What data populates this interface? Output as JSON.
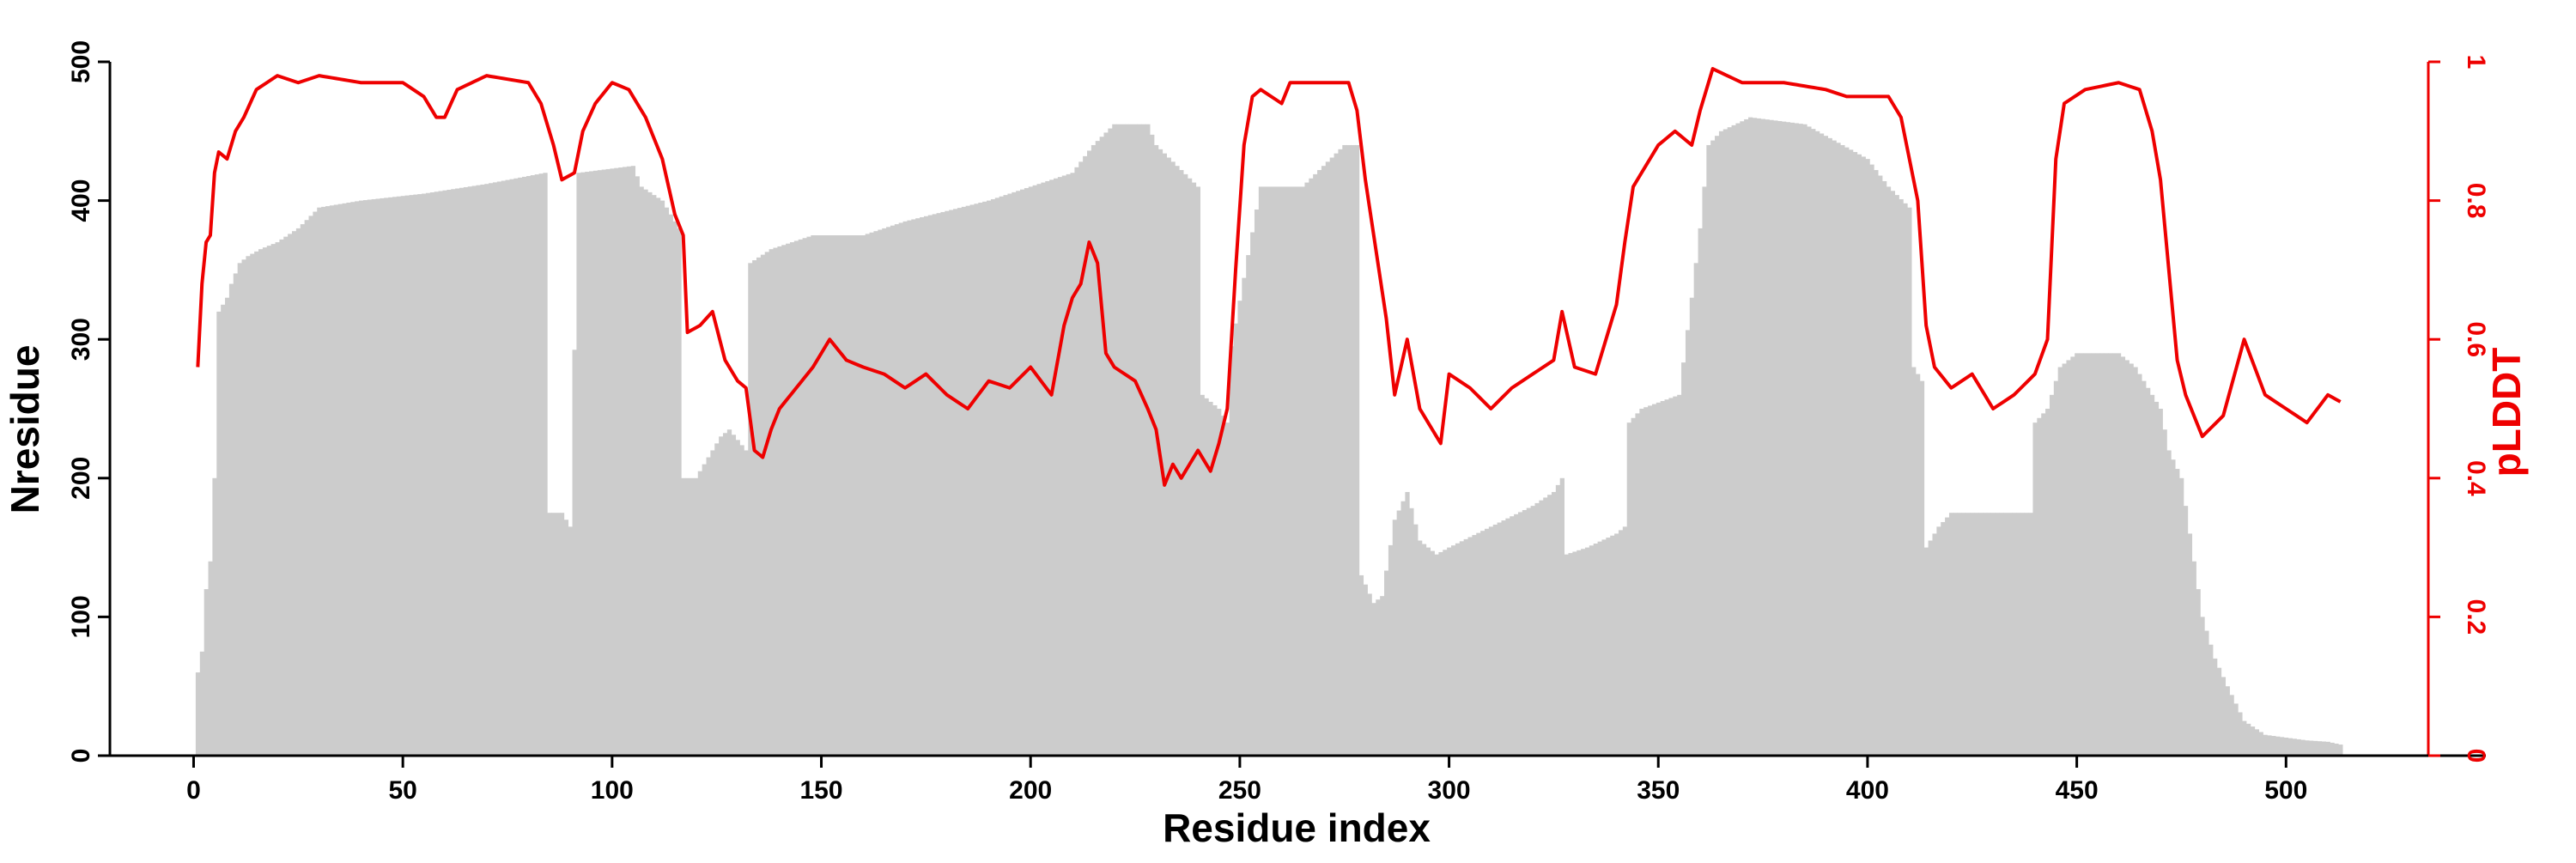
{
  "chart_data": {
    "type": "bar+line",
    "xlabel": "Residue index",
    "ylabel": "Nresidue",
    "y2label": "pLDDT",
    "xlim": [
      -20,
      534
    ],
    "ylim": [
      0,
      500
    ],
    "y2lim": [
      0,
      1
    ],
    "xticks": [
      0,
      50,
      100,
      150,
      200,
      250,
      300,
      350,
      400,
      450,
      500
    ],
    "yticks": [
      0,
      100,
      200,
      300,
      400,
      500
    ],
    "y2ticks": [
      0,
      0.2,
      0.4,
      0.6,
      0.8,
      1
    ],
    "y2ticklabels": [
      "0",
      "0.2",
      "0.4",
      "0.6",
      "0.8",
      "1"
    ],
    "colors": {
      "bars": "#cccccc",
      "plddt": "#ee0000",
      "axis": "#000000"
    },
    "series": [
      {
        "kind": "bar",
        "axis": "left",
        "x_start": 1,
        "x_end": 513,
        "keypoints": [
          [
            1,
            60
          ],
          [
            2,
            75
          ],
          [
            3,
            120
          ],
          [
            4,
            140
          ],
          [
            5,
            200
          ],
          [
            6,
            320
          ],
          [
            8,
            330
          ],
          [
            9,
            340
          ],
          [
            11,
            355
          ],
          [
            13,
            360
          ],
          [
            16,
            365
          ],
          [
            20,
            370
          ],
          [
            25,
            380
          ],
          [
            30,
            395
          ],
          [
            40,
            400
          ],
          [
            55,
            405
          ],
          [
            70,
            412
          ],
          [
            84,
            420
          ],
          [
            85,
            175
          ],
          [
            88,
            175
          ],
          [
            90,
            165
          ],
          [
            92,
            420
          ],
          [
            105,
            425
          ],
          [
            107,
            410
          ],
          [
            112,
            400
          ],
          [
            116,
            380
          ],
          [
            117,
            200
          ],
          [
            120,
            200
          ],
          [
            122,
            210
          ],
          [
            126,
            230
          ],
          [
            128,
            235
          ],
          [
            132,
            220
          ],
          [
            133,
            355
          ],
          [
            138,
            365
          ],
          [
            148,
            375
          ],
          [
            160,
            375
          ],
          [
            170,
            385
          ],
          [
            190,
            400
          ],
          [
            200,
            410
          ],
          [
            210,
            420
          ],
          [
            215,
            440
          ],
          [
            220,
            455
          ],
          [
            228,
            455
          ],
          [
            230,
            440
          ],
          [
            240,
            410
          ],
          [
            241,
            260
          ],
          [
            245,
            250
          ],
          [
            247,
            240
          ],
          [
            248,
            295
          ],
          [
            255,
            410
          ],
          [
            265,
            410
          ],
          [
            275,
            440
          ],
          [
            278,
            440
          ],
          [
            279,
            130
          ],
          [
            282,
            110
          ],
          [
            284,
            115
          ],
          [
            287,
            170
          ],
          [
            290,
            190
          ],
          [
            293,
            155
          ],
          [
            297,
            145
          ],
          [
            300,
            150
          ],
          [
            310,
            165
          ],
          [
            320,
            180
          ],
          [
            325,
            190
          ],
          [
            327,
            200
          ],
          [
            328,
            145
          ],
          [
            333,
            150
          ],
          [
            340,
            160
          ],
          [
            342,
            165
          ],
          [
            343,
            240
          ],
          [
            346,
            250
          ],
          [
            355,
            260
          ],
          [
            358,
            330
          ],
          [
            360,
            380
          ],
          [
            362,
            440
          ],
          [
            365,
            450
          ],
          [
            372,
            460
          ],
          [
            385,
            455
          ],
          [
            400,
            430
          ],
          [
            405,
            410
          ],
          [
            410,
            395
          ],
          [
            411,
            280
          ],
          [
            413,
            270
          ],
          [
            414,
            150
          ],
          [
            417,
            165
          ],
          [
            420,
            175
          ],
          [
            430,
            175
          ],
          [
            438,
            175
          ],
          [
            439,
            175
          ],
          [
            440,
            240
          ],
          [
            443,
            250
          ],
          [
            446,
            280
          ],
          [
            450,
            290
          ],
          [
            460,
            290
          ],
          [
            464,
            280
          ],
          [
            470,
            250
          ],
          [
            472,
            220
          ],
          [
            475,
            200
          ],
          [
            477,
            160
          ],
          [
            480,
            100
          ],
          [
            483,
            70
          ],
          [
            486,
            50
          ],
          [
            490,
            25
          ],
          [
            495,
            15
          ],
          [
            500,
            13
          ],
          [
            505,
            11
          ],
          [
            510,
            10
          ],
          [
            513,
            8
          ]
        ]
      },
      {
        "kind": "line",
        "name": "pLDDT",
        "axis": "right",
        "x_start": 1,
        "x_end": 513,
        "keypoints": [
          [
            1,
            0.56
          ],
          [
            2,
            0.68
          ],
          [
            3,
            0.74
          ],
          [
            4,
            0.75
          ],
          [
            5,
            0.84
          ],
          [
            6,
            0.87
          ],
          [
            8,
            0.86
          ],
          [
            10,
            0.9
          ],
          [
            12,
            0.92
          ],
          [
            15,
            0.96
          ],
          [
            20,
            0.98
          ],
          [
            25,
            0.97
          ],
          [
            30,
            0.98
          ],
          [
            40,
            0.97
          ],
          [
            50,
            0.97
          ],
          [
            55,
            0.95
          ],
          [
            58,
            0.92
          ],
          [
            60,
            0.92
          ],
          [
            63,
            0.96
          ],
          [
            70,
            0.98
          ],
          [
            80,
            0.97
          ],
          [
            83,
            0.94
          ],
          [
            86,
            0.88
          ],
          [
            88,
            0.83
          ],
          [
            91,
            0.84
          ],
          [
            93,
            0.9
          ],
          [
            96,
            0.94
          ],
          [
            100,
            0.97
          ],
          [
            104,
            0.96
          ],
          [
            108,
            0.92
          ],
          [
            112,
            0.86
          ],
          [
            115,
            0.78
          ],
          [
            117,
            0.75
          ],
          [
            118,
            0.61
          ],
          [
            121,
            0.62
          ],
          [
            124,
            0.64
          ],
          [
            127,
            0.57
          ],
          [
            130,
            0.54
          ],
          [
            132,
            0.53
          ],
          [
            134,
            0.44
          ],
          [
            136,
            0.43
          ],
          [
            138,
            0.47
          ],
          [
            140,
            0.5
          ],
          [
            144,
            0.53
          ],
          [
            148,
            0.56
          ],
          [
            150,
            0.58
          ],
          [
            152,
            0.6
          ],
          [
            156,
            0.57
          ],
          [
            160,
            0.56
          ],
          [
            165,
            0.55
          ],
          [
            170,
            0.53
          ],
          [
            175,
            0.55
          ],
          [
            180,
            0.52
          ],
          [
            185,
            0.5
          ],
          [
            190,
            0.54
          ],
          [
            195,
            0.53
          ],
          [
            200,
            0.56
          ],
          [
            205,
            0.52
          ],
          [
            208,
            0.62
          ],
          [
            210,
            0.66
          ],
          [
            212,
            0.68
          ],
          [
            214,
            0.74
          ],
          [
            216,
            0.71
          ],
          [
            218,
            0.58
          ],
          [
            220,
            0.56
          ],
          [
            225,
            0.54
          ],
          [
            228,
            0.5
          ],
          [
            230,
            0.47
          ],
          [
            232,
            0.39
          ],
          [
            234,
            0.42
          ],
          [
            236,
            0.4
          ],
          [
            240,
            0.44
          ],
          [
            243,
            0.41
          ],
          [
            245,
            0.45
          ],
          [
            247,
            0.5
          ],
          [
            249,
            0.7
          ],
          [
            251,
            0.88
          ],
          [
            253,
            0.95
          ],
          [
            255,
            0.96
          ],
          [
            260,
            0.94
          ],
          [
            262,
            0.97
          ],
          [
            270,
            0.97
          ],
          [
            276,
            0.97
          ],
          [
            278,
            0.93
          ],
          [
            280,
            0.83
          ],
          [
            282,
            0.75
          ],
          [
            285,
            0.63
          ],
          [
            287,
            0.52
          ],
          [
            290,
            0.6
          ],
          [
            293,
            0.5
          ],
          [
            296,
            0.47
          ],
          [
            298,
            0.45
          ],
          [
            300,
            0.55
          ],
          [
            305,
            0.53
          ],
          [
            310,
            0.5
          ],
          [
            315,
            0.53
          ],
          [
            320,
            0.55
          ],
          [
            325,
            0.57
          ],
          [
            327,
            0.64
          ],
          [
            330,
            0.56
          ],
          [
            335,
            0.55
          ],
          [
            340,
            0.65
          ],
          [
            342,
            0.74
          ],
          [
            344,
            0.82
          ],
          [
            347,
            0.85
          ],
          [
            350,
            0.88
          ],
          [
            354,
            0.9
          ],
          [
            358,
            0.88
          ],
          [
            360,
            0.93
          ],
          [
            363,
            0.99
          ],
          [
            370,
            0.97
          ],
          [
            380,
            0.97
          ],
          [
            390,
            0.96
          ],
          [
            395,
            0.95
          ],
          [
            400,
            0.95
          ],
          [
            405,
            0.95
          ],
          [
            408,
            0.92
          ],
          [
            412,
            0.8
          ],
          [
            414,
            0.62
          ],
          [
            416,
            0.56
          ],
          [
            420,
            0.53
          ],
          [
            425,
            0.55
          ],
          [
            430,
            0.5
          ],
          [
            435,
            0.52
          ],
          [
            440,
            0.55
          ],
          [
            443,
            0.6
          ],
          [
            445,
            0.86
          ],
          [
            447,
            0.94
          ],
          [
            452,
            0.96
          ],
          [
            460,
            0.97
          ],
          [
            465,
            0.96
          ],
          [
            468,
            0.9
          ],
          [
            470,
            0.83
          ],
          [
            472,
            0.7
          ],
          [
            474,
            0.57
          ],
          [
            476,
            0.52
          ],
          [
            480,
            0.46
          ],
          [
            485,
            0.49
          ],
          [
            490,
            0.6
          ],
          [
            495,
            0.52
          ],
          [
            500,
            0.5
          ],
          [
            505,
            0.48
          ],
          [
            510,
            0.52
          ],
          [
            513,
            0.51
          ]
        ]
      }
    ]
  }
}
